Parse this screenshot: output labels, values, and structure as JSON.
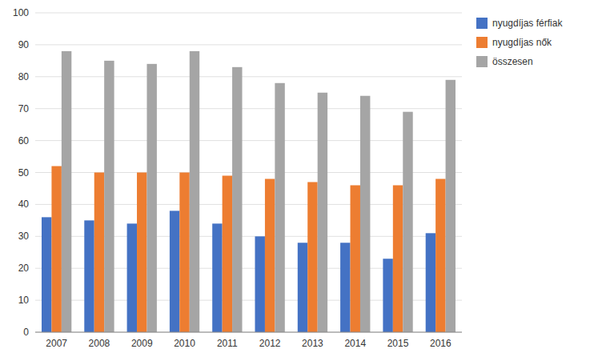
{
  "chart_data": {
    "type": "bar",
    "categories": [
      "2007",
      "2008",
      "2009",
      "2010",
      "2011",
      "2012",
      "2013",
      "2014",
      "2015",
      "2016"
    ],
    "series": [
      {
        "name": "nyugdíjas férfiak",
        "color": "#4472C4",
        "values": [
          36,
          35,
          34,
          38,
          34,
          30,
          28,
          28,
          23,
          31
        ]
      },
      {
        "name": "nyugdíjas nők",
        "color": "#ED7D31",
        "values": [
          52,
          50,
          50,
          50,
          49,
          48,
          47,
          46,
          46,
          48
        ]
      },
      {
        "name": "összesen",
        "color": "#A5A5A5",
        "values": [
          88,
          85,
          84,
          88,
          83,
          78,
          75,
          74,
          69,
          79
        ]
      }
    ],
    "ylim": [
      0,
      100
    ],
    "yticks": [
      0,
      10,
      20,
      30,
      40,
      50,
      60,
      70,
      80,
      90,
      100
    ],
    "grid": true,
    "legend": "upper right"
  }
}
